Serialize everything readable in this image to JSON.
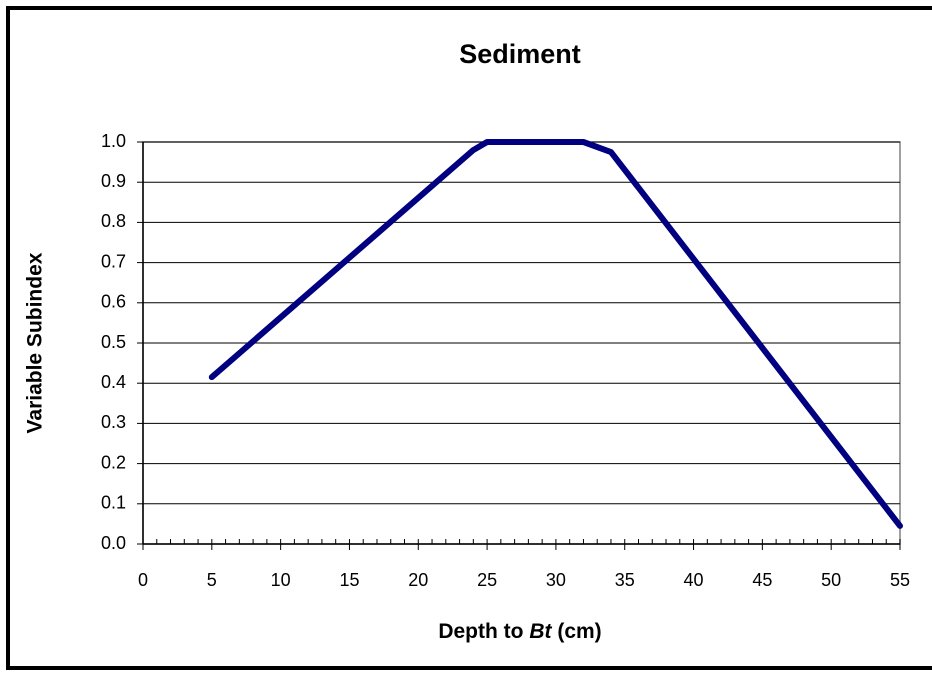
{
  "chart_data": {
    "type": "line",
    "title": "Sediment",
    "xlabel": [
      "Depth to",
      "Bt",
      "(cm)"
    ],
    "ylabel": "Variable Subindex",
    "x": [
      5,
      24,
      25,
      32,
      34,
      55
    ],
    "series": [
      {
        "name": "Sediment",
        "color": "#000080",
        "values": [
          0.415,
          0.98,
          1.0,
          1.0,
          0.975,
          0.045
        ]
      }
    ],
    "xlim": [
      0,
      55
    ],
    "xticks": [
      0,
      5,
      10,
      15,
      20,
      25,
      30,
      35,
      40,
      45,
      50,
      55
    ],
    "xminorticks": [
      0,
      1,
      2,
      3,
      4,
      5,
      6,
      7,
      8,
      9,
      10,
      11,
      12,
      13,
      14,
      15,
      16,
      17,
      18,
      19,
      20,
      21,
      22,
      23,
      24,
      25,
      26,
      27,
      28,
      29,
      30,
      31,
      32,
      33,
      34,
      35,
      36,
      37,
      38,
      39,
      40,
      41,
      42,
      43,
      44,
      45,
      46,
      47,
      48,
      49,
      50,
      51,
      52,
      53,
      54,
      55
    ],
    "ylim": [
      0,
      1
    ],
    "yticks": [
      {
        "value": 0,
        "label": "0.0"
      },
      0.1,
      0.2,
      0.3,
      0.4,
      0.5,
      0.6,
      0.7,
      0.8,
      0.9,
      {
        "value": 1,
        "label": "1.0"
      }
    ],
    "grid": true
  }
}
